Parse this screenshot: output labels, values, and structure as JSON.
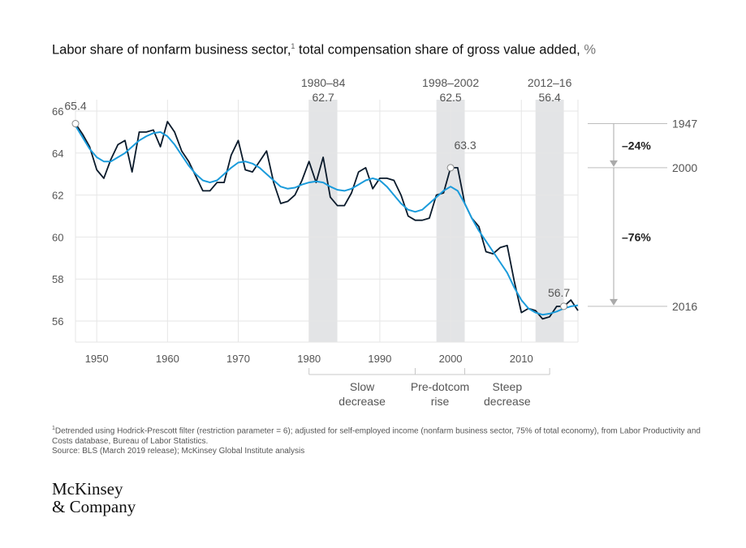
{
  "title": {
    "main": "Labor share of nonfarm business sector,",
    "sup": "1",
    "rest": "total compensation share of gross value added,",
    "unit": "%"
  },
  "chart_data": {
    "type": "line",
    "title": "Labor share of nonfarm business sector, total compensation share of gross value added, %",
    "xlim": [
      1947,
      2018
    ],
    "ylim": [
      55,
      66
    ],
    "x_ticks": [
      1950,
      1960,
      1970,
      1980,
      1990,
      2000,
      2010
    ],
    "y_ticks": [
      56,
      58,
      60,
      62,
      64,
      66
    ],
    "grid": true,
    "series": [
      {
        "name": "",
        "color": "#0a1a2b",
        "points": [
          [
            1947,
            65.4
          ],
          [
            1948,
            64.9
          ],
          [
            1949,
            64.3
          ],
          [
            1950,
            63.2
          ],
          [
            1951,
            62.8
          ],
          [
            1952,
            63.7
          ],
          [
            1953,
            64.4
          ],
          [
            1954,
            64.6
          ],
          [
            1955,
            63.1
          ],
          [
            1956,
            65.0
          ],
          [
            1957,
            65.0
          ],
          [
            1958,
            65.1
          ],
          [
            1959,
            64.3
          ],
          [
            1960,
            65.5
          ],
          [
            1961,
            65.0
          ],
          [
            1962,
            64.1
          ],
          [
            1963,
            63.6
          ],
          [
            1964,
            62.9
          ],
          [
            1965,
            62.2
          ],
          [
            1966,
            62.2
          ],
          [
            1967,
            62.6
          ],
          [
            1968,
            62.6
          ],
          [
            1969,
            63.9
          ],
          [
            1970,
            64.6
          ],
          [
            1971,
            63.2
          ],
          [
            1972,
            63.1
          ],
          [
            1973,
            63.6
          ],
          [
            1974,
            64.1
          ],
          [
            1975,
            62.6
          ],
          [
            1976,
            61.6
          ],
          [
            1977,
            61.7
          ],
          [
            1978,
            62.0
          ],
          [
            1979,
            62.7
          ],
          [
            1980,
            63.6
          ],
          [
            1981,
            62.6
          ],
          [
            1982,
            63.8
          ],
          [
            1983,
            61.9
          ],
          [
            1984,
            61.5
          ],
          [
            1985,
            61.5
          ],
          [
            1986,
            62.1
          ],
          [
            1987,
            63.1
          ],
          [
            1988,
            63.3
          ],
          [
            1989,
            62.3
          ],
          [
            1990,
            62.8
          ],
          [
            1991,
            62.8
          ],
          [
            1992,
            62.7
          ],
          [
            1993,
            62.0
          ],
          [
            1994,
            61.0
          ],
          [
            1995,
            60.8
          ],
          [
            1996,
            60.8
          ],
          [
            1997,
            60.9
          ],
          [
            1998,
            62.0
          ],
          [
            1999,
            62.1
          ],
          [
            2000,
            63.3
          ],
          [
            2001,
            63.3
          ],
          [
            2002,
            61.6
          ],
          [
            2003,
            60.9
          ],
          [
            2004,
            60.5
          ],
          [
            2005,
            59.3
          ],
          [
            2006,
            59.2
          ],
          [
            2007,
            59.5
          ],
          [
            2008,
            59.6
          ],
          [
            2009,
            57.9
          ],
          [
            2010,
            56.4
          ],
          [
            2011,
            56.6
          ],
          [
            2012,
            56.5
          ],
          [
            2013,
            56.1
          ],
          [
            2014,
            56.2
          ],
          [
            2015,
            56.7
          ],
          [
            2016,
            56.7
          ],
          [
            2017,
            57.0
          ],
          [
            2018,
            56.5
          ]
        ]
      },
      {
        "name": "",
        "color": "#1a9bdb",
        "points": [
          [
            1947,
            65.3
          ],
          [
            1949,
            64.2
          ],
          [
            1950,
            63.8
          ],
          [
            1951,
            63.6
          ],
          [
            1952,
            63.6
          ],
          [
            1953,
            63.8
          ],
          [
            1954,
            64.0
          ],
          [
            1955,
            64.3
          ],
          [
            1956,
            64.6
          ],
          [
            1957,
            64.8
          ],
          [
            1958,
            64.95
          ],
          [
            1959,
            65.0
          ],
          [
            1960,
            64.8
          ],
          [
            1961,
            64.4
          ],
          [
            1962,
            63.9
          ],
          [
            1963,
            63.4
          ],
          [
            1964,
            63.0
          ],
          [
            1965,
            62.7
          ],
          [
            1966,
            62.6
          ],
          [
            1967,
            62.7
          ],
          [
            1968,
            63.0
          ],
          [
            1969,
            63.3
          ],
          [
            1970,
            63.55
          ],
          [
            1971,
            63.6
          ],
          [
            1972,
            63.5
          ],
          [
            1973,
            63.3
          ],
          [
            1974,
            63.0
          ],
          [
            1975,
            62.7
          ],
          [
            1976,
            62.4
          ],
          [
            1977,
            62.3
          ],
          [
            1978,
            62.35
          ],
          [
            1979,
            62.5
          ],
          [
            1980,
            62.6
          ],
          [
            1981,
            62.65
          ],
          [
            1982,
            62.6
          ],
          [
            1983,
            62.4
          ],
          [
            1984,
            62.25
          ],
          [
            1985,
            62.2
          ],
          [
            1986,
            62.3
          ],
          [
            1987,
            62.5
          ],
          [
            1988,
            62.7
          ],
          [
            1989,
            62.8
          ],
          [
            1990,
            62.7
          ],
          [
            1991,
            62.4
          ],
          [
            1992,
            62.0
          ],
          [
            1993,
            61.6
          ],
          [
            1994,
            61.3
          ],
          [
            1995,
            61.2
          ],
          [
            1996,
            61.3
          ],
          [
            1997,
            61.6
          ],
          [
            1998,
            61.9
          ],
          [
            1999,
            62.2
          ],
          [
            2000,
            62.4
          ],
          [
            2001,
            62.2
          ],
          [
            2002,
            61.6
          ],
          [
            2003,
            60.9
          ],
          [
            2004,
            60.3
          ],
          [
            2005,
            59.8
          ],
          [
            2006,
            59.3
          ],
          [
            2007,
            58.8
          ],
          [
            2008,
            58.3
          ],
          [
            2009,
            57.6
          ],
          [
            2010,
            57.0
          ],
          [
            2011,
            56.6
          ],
          [
            2012,
            56.4
          ],
          [
            2013,
            56.3
          ],
          [
            2014,
            56.35
          ],
          [
            2015,
            56.45
          ],
          [
            2016,
            56.6
          ],
          [
            2017,
            56.7
          ],
          [
            2018,
            56.75
          ]
        ]
      }
    ],
    "point_labels": [
      {
        "x": 1947,
        "y": 65.4,
        "label": "65.4"
      },
      {
        "x": 2000,
        "y": 63.3,
        "label": "63.3"
      },
      {
        "x": 2016,
        "y": 56.7,
        "label": "56.7"
      }
    ],
    "shaded_periods": [
      {
        "x0": 1980,
        "x1": 1984,
        "label": "1980–84",
        "value": "62.7"
      },
      {
        "x0": 1998,
        "x1": 2002,
        "label": "1998–2002",
        "value": "62.5"
      },
      {
        "x0": 2012,
        "x1": 2016,
        "label": "2012–16",
        "value": "56.4"
      }
    ],
    "phases": [
      {
        "x0": 1980,
        "x1": 1995,
        "lines": [
          "Slow",
          "decrease"
        ]
      },
      {
        "x0": 1995,
        "x1": 2002,
        "lines": [
          "Pre-dotcom",
          "rise"
        ]
      },
      {
        "x0": 2002,
        "x1": 2014,
        "lines": [
          "Steep",
          "decrease"
        ]
      }
    ],
    "right_refs": [
      {
        "label": "1947",
        "y": 65.4
      },
      {
        "label": "2000",
        "y": 63.3
      },
      {
        "label": "2016",
        "y": 56.7
      }
    ],
    "decline_shares": [
      {
        "label": "–24%",
        "from": 65.4,
        "to": 63.3
      },
      {
        "label": "–76%",
        "from": 63.3,
        "to": 56.7
      }
    ]
  },
  "footnotes": {
    "note1_sup": "1",
    "note1": "Detrended using Hodrick-Prescott filter (restriction parameter = 6); adjusted for self-employed income (nonfarm business sector, 75% of total economy), from Labor Productivity and Costs database, Bureau of Labor Statistics.",
    "source": "Source: BLS (March 2019 release); McKinsey Global Institute analysis"
  },
  "logo": {
    "line1": "McKinsey",
    "line2": "& Company"
  }
}
